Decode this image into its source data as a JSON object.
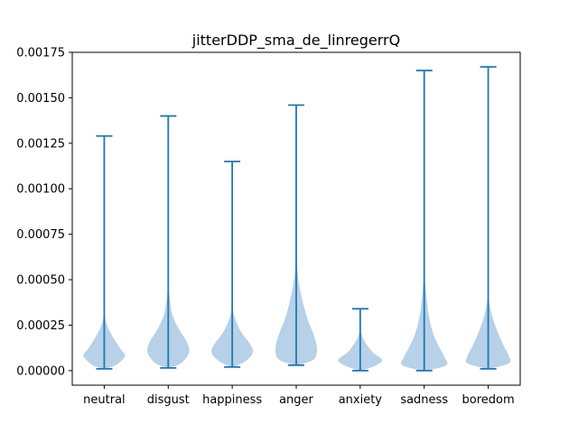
{
  "chart_data": {
    "type": "violin",
    "title": "jitterDDP_sma_de_linregerrQ",
    "xlabel": "",
    "ylabel": "",
    "ylim": [
      -8e-05,
      0.00175
    ],
    "yticks": [
      0.0,
      0.00025,
      0.0005,
      0.00075,
      0.001,
      0.00125,
      0.0015,
      0.00175
    ],
    "ytick_labels": [
      "0.00000",
      "0.00025",
      "0.00050",
      "0.00075",
      "0.00100",
      "0.00125",
      "0.00150",
      "0.00175"
    ],
    "grid": false,
    "categories": [
      "neutral",
      "disgust",
      "happiness",
      "anger",
      "anxiety",
      "sadness",
      "boredom"
    ],
    "colors": {
      "body": "#a9c9e4",
      "line": "#1f77b4"
    },
    "violins": [
      {
        "category": "neutral",
        "min": 1e-05,
        "max": 0.00129,
        "density": [
          [
            1e-05,
            0.02
          ],
          [
            3e-05,
            0.5
          ],
          [
            8e-05,
            0.9
          ],
          [
            0.00012,
            0.7
          ],
          [
            0.00018,
            0.4
          ],
          [
            0.00024,
            0.15
          ],
          [
            0.0003,
            0.03
          ],
          [
            0.00038,
            0.0
          ]
        ]
      },
      {
        "category": "disgust",
        "min": 1.5e-05,
        "max": 0.0014,
        "density": [
          [
            1.5e-05,
            0.02
          ],
          [
            4e-05,
            0.55
          ],
          [
            0.0001,
            0.9
          ],
          [
            0.00016,
            0.8
          ],
          [
            0.00022,
            0.5
          ],
          [
            0.0003,
            0.2
          ],
          [
            0.00038,
            0.08
          ],
          [
            0.00048,
            0.0
          ]
        ]
      },
      {
        "category": "happiness",
        "min": 2e-05,
        "max": 0.00115,
        "density": [
          [
            2e-05,
            0.02
          ],
          [
            5e-05,
            0.55
          ],
          [
            0.0001,
            0.9
          ],
          [
            0.00015,
            0.75
          ],
          [
            0.0002,
            0.45
          ],
          [
            0.00026,
            0.2
          ],
          [
            0.00032,
            0.05
          ],
          [
            0.00038,
            0.0
          ]
        ]
      },
      {
        "category": "anger",
        "min": 3e-05,
        "max": 0.00146,
        "density": [
          [
            3e-05,
            0.02
          ],
          [
            6e-05,
            0.75
          ],
          [
            0.00012,
            0.9
          ],
          [
            0.0002,
            0.75
          ],
          [
            0.00028,
            0.5
          ],
          [
            0.00038,
            0.28
          ],
          [
            0.00048,
            0.12
          ],
          [
            0.00058,
            0.03
          ],
          [
            0.00066,
            0.0
          ]
        ]
      },
      {
        "category": "anxiety",
        "min": 0.0,
        "max": 0.00034,
        "density": [
          [
            0.0,
            0.05
          ],
          [
            3e-05,
            0.7
          ],
          [
            6e-05,
            0.95
          ],
          [
            0.0001,
            0.55
          ],
          [
            0.00014,
            0.3
          ],
          [
            0.00018,
            0.12
          ],
          [
            0.00022,
            0.02
          ],
          [
            0.00025,
            0.0
          ]
        ]
      },
      {
        "category": "sadness",
        "min": 0.0,
        "max": 0.00165,
        "density": [
          [
            0.0,
            0.1
          ],
          [
            3e-05,
            0.95
          ],
          [
            7e-05,
            0.9
          ],
          [
            0.00013,
            0.65
          ],
          [
            0.0002,
            0.4
          ],
          [
            0.0003,
            0.2
          ],
          [
            0.0004,
            0.1
          ],
          [
            0.0005,
            0.03
          ],
          [
            0.00058,
            0.0
          ]
        ]
      },
      {
        "category": "boredom",
        "min": 1e-05,
        "max": 0.00167,
        "density": [
          [
            1e-05,
            0.05
          ],
          [
            4e-05,
            0.9
          ],
          [
            8e-05,
            0.9
          ],
          [
            0.00013,
            0.7
          ],
          [
            0.0002,
            0.45
          ],
          [
            0.00028,
            0.22
          ],
          [
            0.00035,
            0.08
          ],
          [
            0.00042,
            0.0
          ]
        ]
      }
    ]
  }
}
